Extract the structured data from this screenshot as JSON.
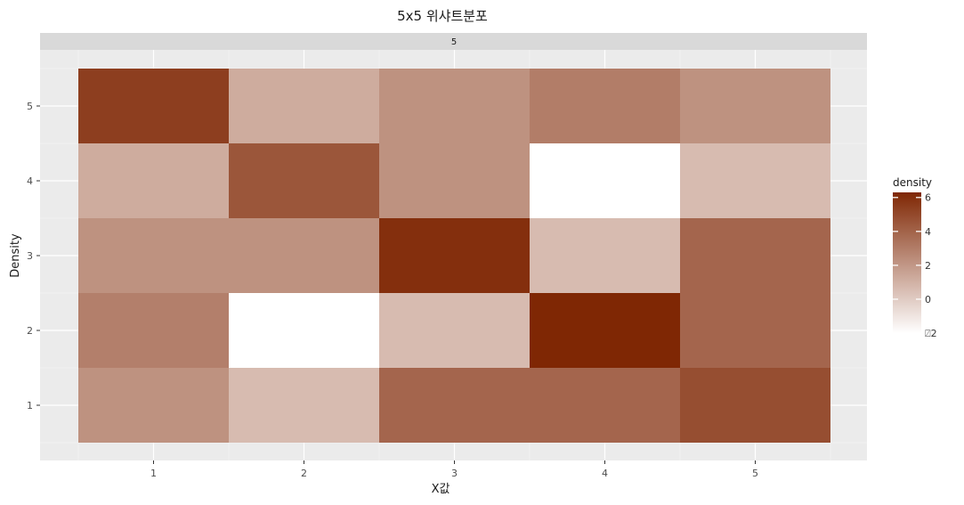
{
  "chart_data": {
    "type": "heatmap",
    "title": "5x5 위샤트분포",
    "facet_label": "5",
    "xlabel": "X값",
    "ylabel": "Density",
    "x_categories": [
      "1",
      "2",
      "3",
      "4",
      "5"
    ],
    "y_categories": [
      "1",
      "2",
      "3",
      "4",
      "5"
    ],
    "values": [
      [
        2.2,
        0.6,
        3.9,
        3.9,
        4.8
      ],
      [
        2.9,
        -2.0,
        0.6,
        6.3,
        3.9
      ],
      [
        2.2,
        2.2,
        6.0,
        0.6,
        3.9
      ],
      [
        1.2,
        4.5,
        2.2,
        -2.0,
        0.6
      ],
      [
        5.4,
        1.2,
        2.2,
        3.0,
        2.2
      ]
    ],
    "legend": {
      "title": "density",
      "ticks": [
        6,
        4,
        2,
        0,
        -2
      ],
      "tick_labels": [
        "6",
        "4",
        "2",
        "0",
        "⍁2"
      ],
      "range": [
        -2.0,
        6.3
      ],
      "low_color": "#ffffff",
      "high_color": "#7f2704",
      "placement": "right"
    },
    "grid": true,
    "panel_background": "#ebebeb",
    "strip_background": "#d9d9d9"
  }
}
